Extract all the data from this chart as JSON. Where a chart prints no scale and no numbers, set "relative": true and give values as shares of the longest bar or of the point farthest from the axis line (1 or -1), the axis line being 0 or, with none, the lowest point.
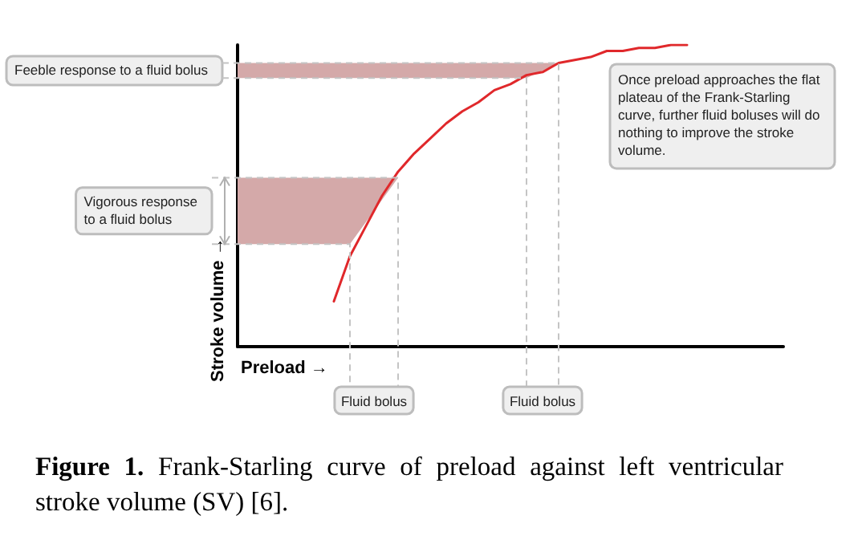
{
  "chart_data": {
    "type": "line",
    "relative": true,
    "xlabel": "Preload →",
    "ylabel": "Stroke volume →",
    "categories": [
      null,
      null,
      null,
      null,
      null,
      null,
      null,
      null,
      null,
      null,
      null,
      null,
      null,
      null,
      null,
      null,
      null,
      null,
      null,
      null,
      null,
      null,
      null,
      null,
      null,
      null,
      null,
      null,
      null,
      null,
      null,
      null,
      null,
      null,
      null
    ],
    "series": [
      {
        "color": "#e0282b",
        "values": [
          null,
          null,
          null,
          null,
          null,
          null,
          0.15,
          0.3,
          0.4,
          0.5,
          0.58,
          0.64,
          0.69,
          0.74,
          0.78,
          0.81,
          0.85,
          0.87,
          0.9,
          0.91,
          0.94,
          0.95,
          0.96,
          0.98,
          0.98,
          0.99,
          0.99,
          1,
          1,
          null,
          null,
          null,
          null,
          null,
          null
        ]
      }
    ],
    "bands": [
      {
        "axis": "y",
        "from": 0.34,
        "to": 0.56,
        "label": "Vigorous response to a fluid bolus",
        "color": "#d4a9a9"
      },
      {
        "axis": "y",
        "from": 0.89,
        "to": 0.94,
        "label": "Feeble response to a fluid bolus",
        "color": "#d4a9a9"
      }
    ],
    "annotations": [
      "Fluid bolus",
      "Fluid bolus",
      "Once preload approaches the flat plateau of the Frank-Starling curve, further fluid boluses will do nothing to improve the stroke volume.",
      "Figure 1. Frank-Starling curve of preload against left ventricular stroke volume (SV) [6]."
    ],
    "grid": false,
    "marker": "none",
    "line_style": "solid"
  }
}
